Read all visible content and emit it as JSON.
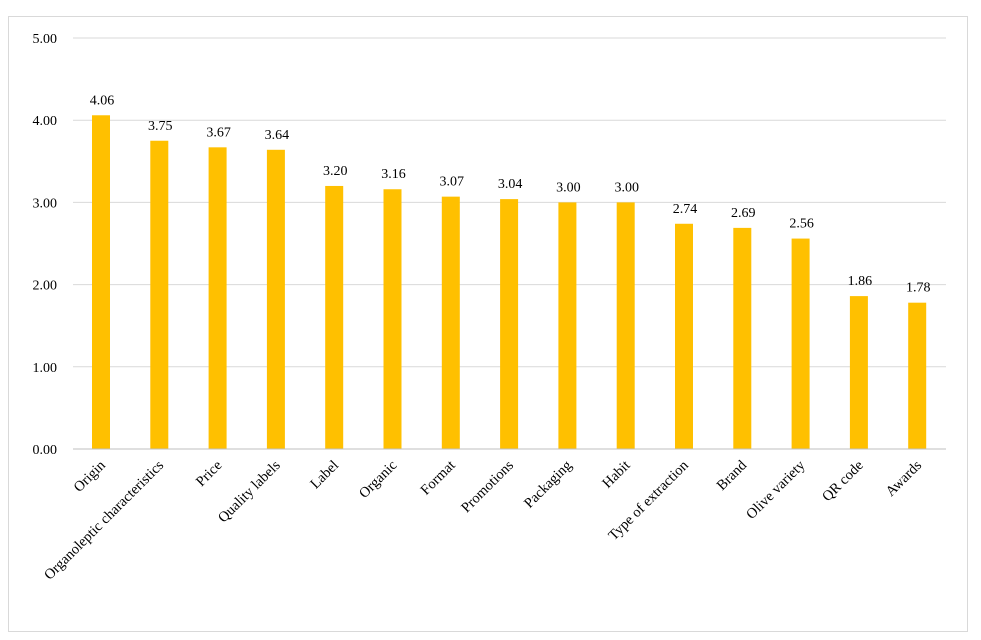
{
  "chart_data": {
    "type": "bar",
    "title": "",
    "xlabel": "",
    "ylabel": "",
    "ylim": [
      0,
      5
    ],
    "yticks": [
      "0.00",
      "1.00",
      "2.00",
      "3.00",
      "4.00",
      "5.00"
    ],
    "grid": true,
    "legend": "none",
    "bar_color": "#FFC000",
    "categories": [
      "Origin",
      "Organoleptic characteristics",
      "Price",
      "Quality labels",
      "Label",
      "Organic",
      "Format",
      "Promotions",
      "Packaging",
      "Habit",
      "Type of extraction",
      "Brand",
      "Olive variety",
      "QR code",
      "Awards"
    ],
    "values": [
      4.06,
      3.75,
      3.67,
      3.64,
      3.2,
      3.16,
      3.07,
      3.04,
      3.0,
      3.0,
      2.74,
      2.69,
      2.56,
      1.86,
      1.78
    ],
    "data_labels": [
      "4.06",
      "3.75",
      "3.67",
      "3.64",
      "3.20",
      "3.16",
      "3.07",
      "3.04",
      "3.00",
      "3.00",
      "2.74",
      "2.69",
      "2.56",
      "1.86",
      "1.78"
    ]
  }
}
